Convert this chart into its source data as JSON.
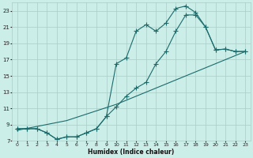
{
  "xlabel": "Humidex (Indice chaleur)",
  "xlim": [
    -0.5,
    23.5
  ],
  "ylim": [
    7,
    24
  ],
  "xticks": [
    0,
    1,
    2,
    3,
    4,
    5,
    6,
    7,
    8,
    9,
    10,
    11,
    12,
    13,
    14,
    15,
    16,
    17,
    18,
    19,
    20,
    21,
    22,
    23
  ],
  "yticks": [
    7,
    9,
    11,
    13,
    15,
    17,
    19,
    21,
    23
  ],
  "bg_color": "#cceee8",
  "grid_color": "#aaccc8",
  "line_color": "#1a6b6b",
  "curve1_x": [
    0,
    1,
    2,
    3,
    4,
    5,
    6,
    7,
    8,
    9,
    10,
    11,
    12,
    13,
    14,
    15,
    16,
    17,
    18,
    19,
    20,
    21,
    22,
    23
  ],
  "curve1_y": [
    8.5,
    8.5,
    8.5,
    8.0,
    7.2,
    7.5,
    7.5,
    8.0,
    8.5,
    10.0,
    16.5,
    17.2,
    20.5,
    21.3,
    20.5,
    21.5,
    23.3,
    23.6,
    22.8,
    21.0,
    18.2,
    18.3,
    18.0,
    18.0
  ],
  "curve2_x": [
    0,
    1,
    2,
    3,
    4,
    5,
    6,
    7,
    8,
    9,
    10,
    11,
    12,
    13,
    14,
    15,
    16,
    17,
    18,
    19,
    20,
    21,
    22,
    23
  ],
  "curve2_y": [
    8.5,
    8.5,
    8.5,
    8.0,
    7.2,
    7.5,
    7.5,
    8.0,
    8.5,
    10.0,
    11.2,
    12.5,
    13.5,
    14.2,
    16.5,
    18.0,
    20.5,
    22.5,
    22.5,
    21.0,
    18.2,
    18.3,
    18.0,
    18.0
  ],
  "curve3_x": [
    0,
    5,
    10,
    15,
    20,
    23
  ],
  "curve3_y": [
    8.3,
    9.5,
    11.5,
    14.0,
    16.5,
    18.0
  ]
}
